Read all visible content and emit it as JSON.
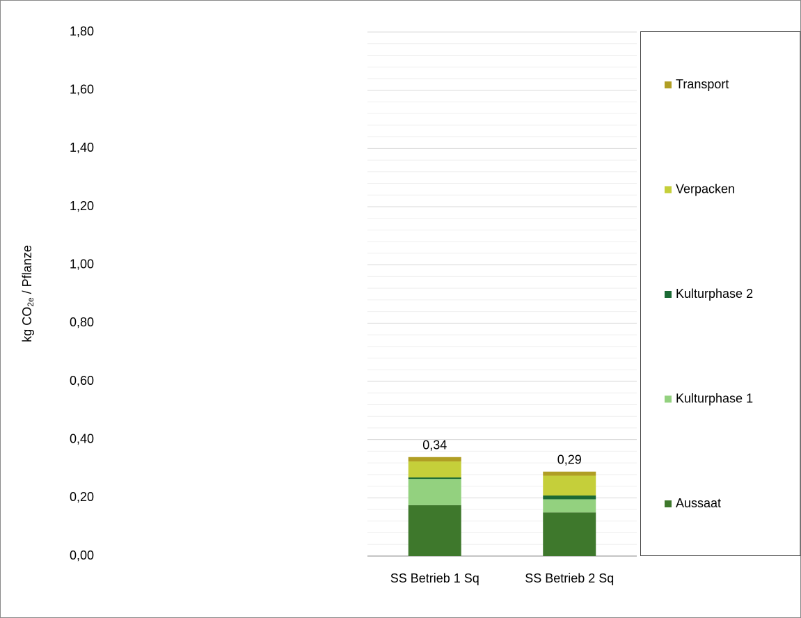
{
  "chart_data": {
    "type": "stacked_bar",
    "y_label": {
      "prefix": "kg CO",
      "sub": "2e",
      "suffix": " / Pflanze"
    },
    "categories": [
      "SS Betrieb 1 Sq",
      "SS Betrieb 2 Sq"
    ],
    "series": [
      {
        "name": "Aussaat",
        "color": "#3e782c",
        "values": [
          0.175,
          0.15
        ]
      },
      {
        "name": "Kulturphase 1",
        "color": "#93d17f",
        "values": [
          0.09,
          0.045
        ]
      },
      {
        "name": "Kulturphase 2",
        "color": "#1b6a34",
        "values": [
          0.005,
          0.013
        ]
      },
      {
        "name": "Verpacken",
        "color": "#c5cf3a",
        "values": [
          0.055,
          0.068
        ]
      },
      {
        "name": "Transport",
        "color": "#b09e24",
        "values": [
          0.015,
          0.014
        ]
      }
    ],
    "totals": [
      0.34,
      0.29
    ],
    "total_labels": [
      "0,34",
      "0,29"
    ],
    "ylim": [
      0,
      1.8
    ],
    "yticks": [
      {
        "value": 0,
        "label": "0,00"
      },
      {
        "value": 0.2,
        "label": "0,20"
      },
      {
        "value": 0.4,
        "label": "0,40"
      },
      {
        "value": 0.6,
        "label": "0,60"
      },
      {
        "value": 0.8,
        "label": "0,80"
      },
      {
        "value": 1.0,
        "label": "1,00"
      },
      {
        "value": 1.2,
        "label": "1,20"
      },
      {
        "value": 1.4,
        "label": "1,40"
      },
      {
        "value": 1.6,
        "label": "1,60"
      },
      {
        "value": 1.8,
        "label": "1,80"
      }
    ],
    "minor_yticks": [
      0.04,
      0.08,
      0.12,
      0.16,
      0.24,
      0.28,
      0.32,
      0.36,
      0.44,
      0.48,
      0.52,
      0.56,
      0.64,
      0.68,
      0.72,
      0.76,
      0.84,
      0.88,
      0.92,
      0.96,
      1.04,
      1.08,
      1.12,
      1.16,
      1.24,
      1.28,
      1.32,
      1.36,
      1.44,
      1.48,
      1.52,
      1.56,
      1.64,
      1.68,
      1.72,
      1.76
    ],
    "grid": true,
    "legend": "right"
  }
}
